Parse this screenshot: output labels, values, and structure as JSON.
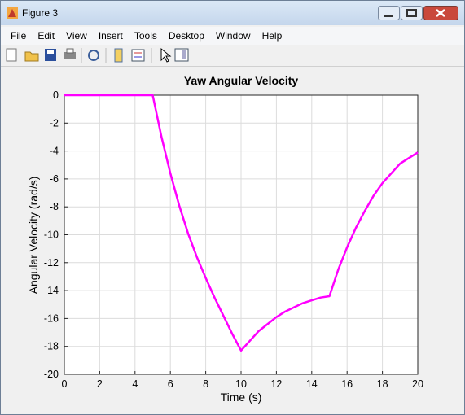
{
  "window": {
    "title": "Figure 3",
    "menu": [
      "File",
      "Edit",
      "View",
      "Insert",
      "Tools",
      "Desktop",
      "Window",
      "Help"
    ]
  },
  "chart_data": {
    "type": "line",
    "title": "Yaw Angular Velocity",
    "xlabel": "Time (s)",
    "ylabel": "Angular Velocity (rad/s)",
    "x": [
      0,
      5,
      5.5,
      6,
      6.5,
      7,
      7.5,
      8,
      8.5,
      9,
      9.5,
      10,
      10.5,
      11,
      11.5,
      12,
      12.5,
      13,
      13.5,
      14,
      14.5,
      15,
      15.5,
      16,
      16.5,
      17,
      17.5,
      18,
      18.5,
      19,
      19.5,
      20
    ],
    "values": [
      0,
      0,
      -3.0,
      -5.6,
      -7.9,
      -9.9,
      -11.6,
      -13.1,
      -14.5,
      -15.8,
      -17.1,
      -18.3,
      -17.6,
      -16.9,
      -16.4,
      -15.9,
      -15.5,
      -15.2,
      -14.9,
      -14.7,
      -14.5,
      -14.4,
      -12.5,
      -10.9,
      -9.5,
      -8.3,
      -7.2,
      -6.3,
      -5.6,
      -4.9,
      -4.5,
      -4.1
    ],
    "color": "#ff00ff",
    "xlim": [
      0,
      20
    ],
    "xticks": [
      0,
      2,
      4,
      6,
      8,
      10,
      12,
      14,
      16,
      18,
      20
    ],
    "ylim": [
      -20,
      0
    ],
    "yticks": [
      0,
      -2,
      -4,
      -6,
      -8,
      -10,
      -12,
      -14,
      -16,
      -18,
      -20
    ],
    "grid": true
  }
}
